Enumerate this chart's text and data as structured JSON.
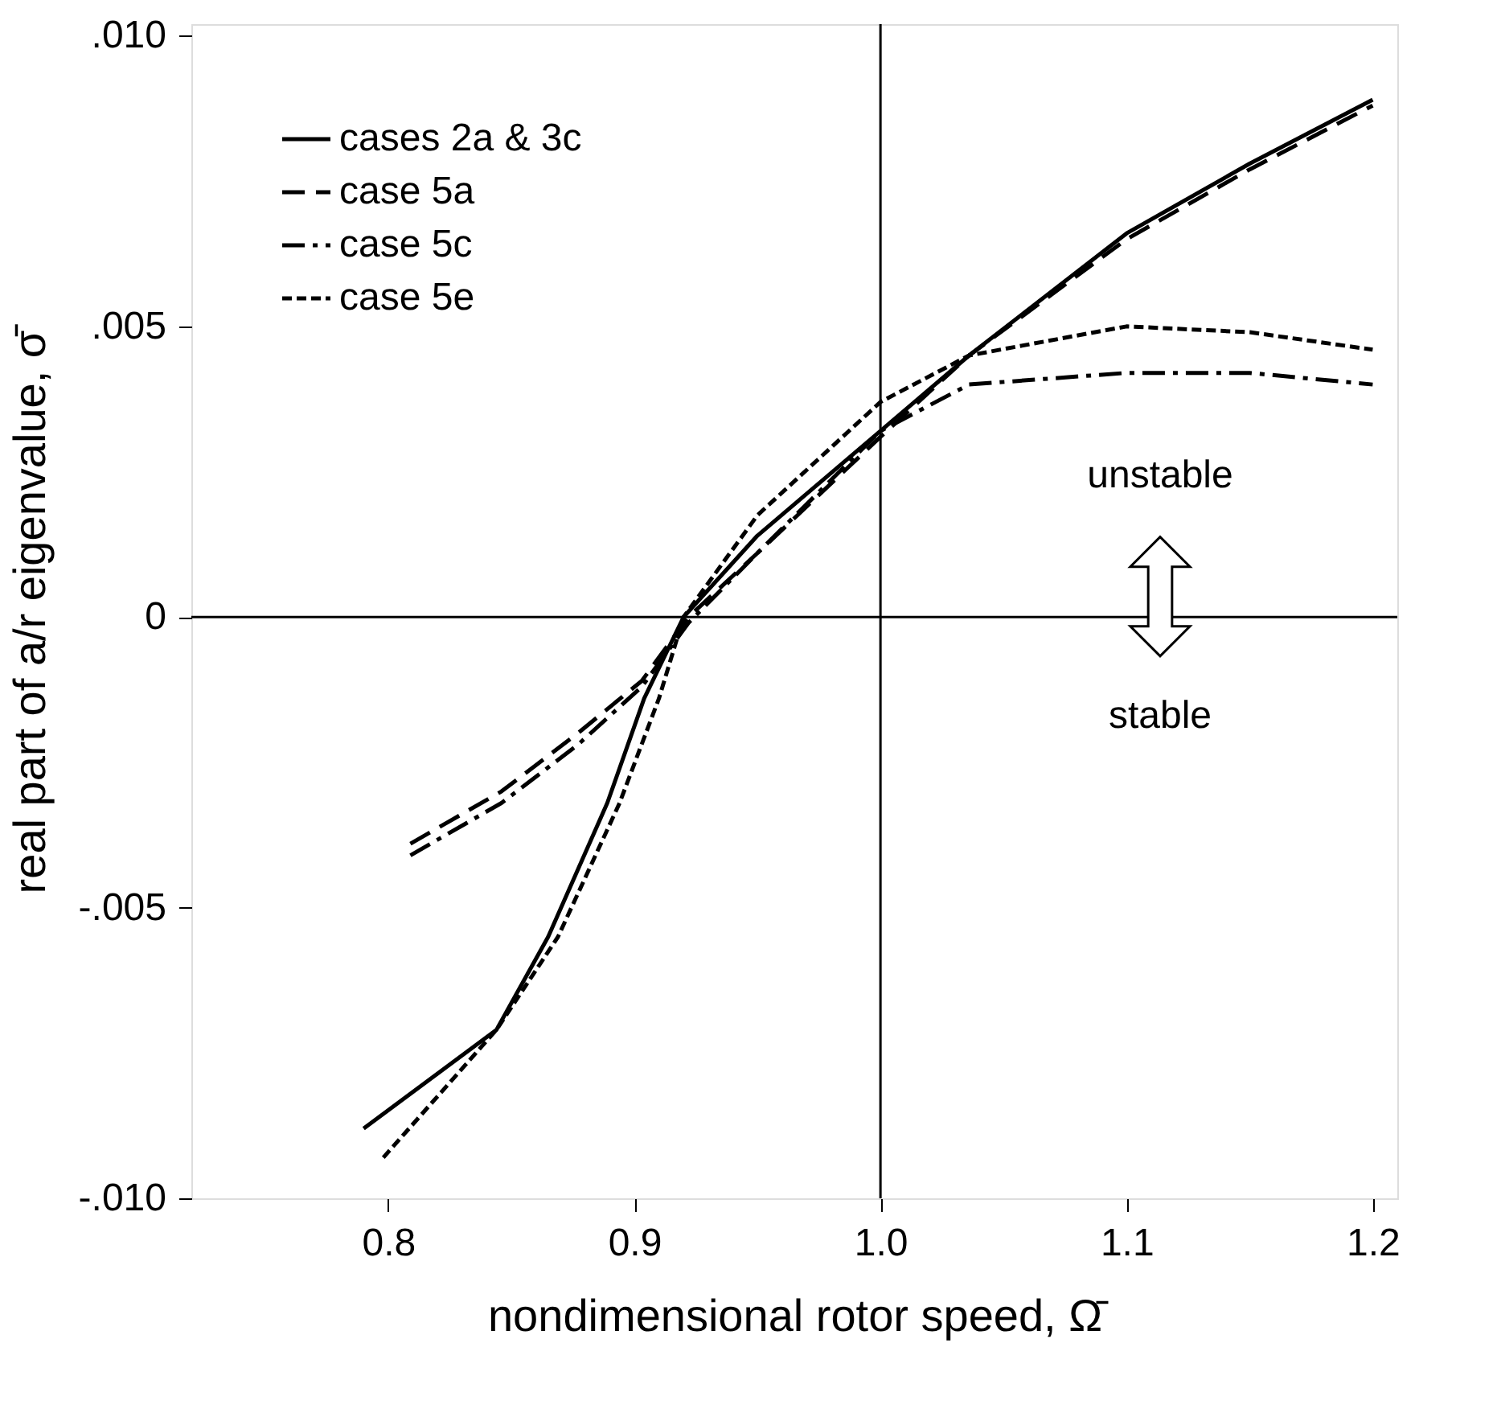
{
  "chart_data": {
    "type": "line",
    "xlabel": "nondimensional rotor speed, Ω̄",
    "ylabel": "real part of a/r eigenvalue, σ̄",
    "xlim": [
      0.72,
      1.21
    ],
    "ylim": [
      -0.01,
      0.0102
    ],
    "xticks": [
      0.8,
      0.9,
      {
        "value": 1.0,
        "label": "1.0"
      },
      1.1,
      1.2
    ],
    "yticks": [
      {
        "value": -0.01,
        "label": "-.010"
      },
      {
        "value": -0.005,
        "label": "-.005"
      },
      0,
      {
        "value": 0.005,
        "label": ".005"
      },
      {
        "value": 0.01,
        "label": ".010"
      }
    ],
    "grid": false,
    "legend": "top left",
    "marker": "none",
    "ref_lines": [
      {
        "axis": "x",
        "value": 1.0,
        "color": "#000000"
      },
      {
        "axis": "y",
        "value": 0,
        "color": "#000000"
      }
    ],
    "annotations": [
      "unstable",
      "stable"
    ],
    "series": [
      {
        "name": "cases 2a & 3c",
        "color": "#000000",
        "line_style": "solid",
        "x": [
          0.79,
          0.844,
          0.865,
          0.889,
          0.904,
          0.92,
          0.95,
          1.0,
          1.036,
          1.1,
          1.15,
          1.2
        ],
        "values": [
          -0.0088,
          -0.0071,
          -0.0055,
          -0.0032,
          -0.0014,
          0,
          0.0014,
          0.0032,
          0.0045,
          0.0066,
          0.0078,
          0.0089
        ]
      },
      {
        "name": "case 5a",
        "color": "#000000",
        "line_style": "dashed",
        "x": [
          0.809,
          0.846,
          0.877,
          0.903,
          0.922,
          0.95,
          1.0,
          1.036,
          1.1,
          1.15,
          1.2
        ],
        "values": [
          -0.0039,
          -0.003,
          -0.002,
          -0.0011,
          0,
          0.0011,
          0.0031,
          0.0045,
          0.0065,
          0.0077,
          0.0088
        ]
      },
      {
        "name": "case 5c",
        "color": "#000000",
        "line_style": "dashdot",
        "x": [
          0.809,
          0.846,
          0.877,
          0.903,
          0.922,
          0.95,
          1.0,
          1.036,
          1.1,
          1.15,
          1.2
        ],
        "values": [
          -0.0041,
          -0.0032,
          -0.0022,
          -0.0012,
          -0.0001,
          0.0011,
          0.0032,
          0.004,
          0.0042,
          0.0042,
          0.004
        ]
      },
      {
        "name": "case 5e",
        "color": "#000000",
        "line_style": "shortdash",
        "x": [
          0.798,
          0.844,
          0.869,
          0.894,
          0.91,
          0.92,
          0.95,
          1.0,
          1.036,
          1.1,
          1.15,
          1.2
        ],
        "values": [
          -0.0093,
          -0.0071,
          -0.0055,
          -0.0032,
          -0.0014,
          0,
          0.00175,
          0.0037,
          0.0045,
          0.005,
          0.0049,
          0.0046
        ]
      }
    ]
  }
}
